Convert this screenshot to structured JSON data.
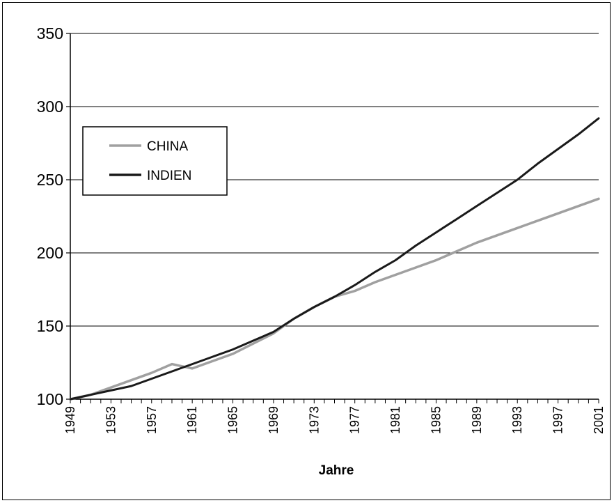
{
  "chart_data": {
    "type": "line",
    "title": "",
    "xlabel": "Jahre",
    "ylabel": "",
    "ylim": [
      100,
      350
    ],
    "xlim": [
      1949,
      2001
    ],
    "y_ticks": [
      100,
      150,
      200,
      250,
      300,
      350
    ],
    "x_tick_labels": [
      "1949",
      "1953",
      "1957",
      "1961",
      "1965",
      "1969",
      "1973",
      "1977",
      "1981",
      "1985",
      "1989",
      "1993",
      "1997",
      "2001"
    ],
    "grid": "horizontal",
    "legend_position": "upper-left",
    "series": [
      {
        "name": "CHINA",
        "color": "#a0a0a0",
        "points": [
          [
            1949,
            100
          ],
          [
            1951,
            103
          ],
          [
            1953,
            108
          ],
          [
            1955,
            113
          ],
          [
            1957,
            118
          ],
          [
            1959,
            124
          ],
          [
            1961,
            121
          ],
          [
            1963,
            126
          ],
          [
            1965,
            131
          ],
          [
            1967,
            138
          ],
          [
            1969,
            145
          ],
          [
            1971,
            155
          ],
          [
            1973,
            163
          ],
          [
            1975,
            170
          ],
          [
            1977,
            174
          ],
          [
            1979,
            180
          ],
          [
            1981,
            185
          ],
          [
            1983,
            190
          ],
          [
            1985,
            195
          ],
          [
            1987,
            201
          ],
          [
            1989,
            207
          ],
          [
            1991,
            212
          ],
          [
            1993,
            217
          ],
          [
            1995,
            222
          ],
          [
            1997,
            227
          ],
          [
            1999,
            232
          ],
          [
            2001,
            237
          ]
        ]
      },
      {
        "name": "INDIEN",
        "color": "#1a1a1a",
        "points": [
          [
            1949,
            100
          ],
          [
            1951,
            103
          ],
          [
            1953,
            106
          ],
          [
            1955,
            109
          ],
          [
            1957,
            114
          ],
          [
            1959,
            119
          ],
          [
            1961,
            124
          ],
          [
            1963,
            129
          ],
          [
            1965,
            134
          ],
          [
            1967,
            140
          ],
          [
            1969,
            146
          ],
          [
            1971,
            155
          ],
          [
            1973,
            163
          ],
          [
            1975,
            170
          ],
          [
            1977,
            178
          ],
          [
            1979,
            187
          ],
          [
            1981,
            195
          ],
          [
            1983,
            205
          ],
          [
            1985,
            214
          ],
          [
            1987,
            223
          ],
          [
            1989,
            232
          ],
          [
            1991,
            241
          ],
          [
            1993,
            250
          ],
          [
            1995,
            261
          ],
          [
            1997,
            271
          ],
          [
            1999,
            281
          ],
          [
            2001,
            292
          ]
        ]
      }
    ]
  }
}
